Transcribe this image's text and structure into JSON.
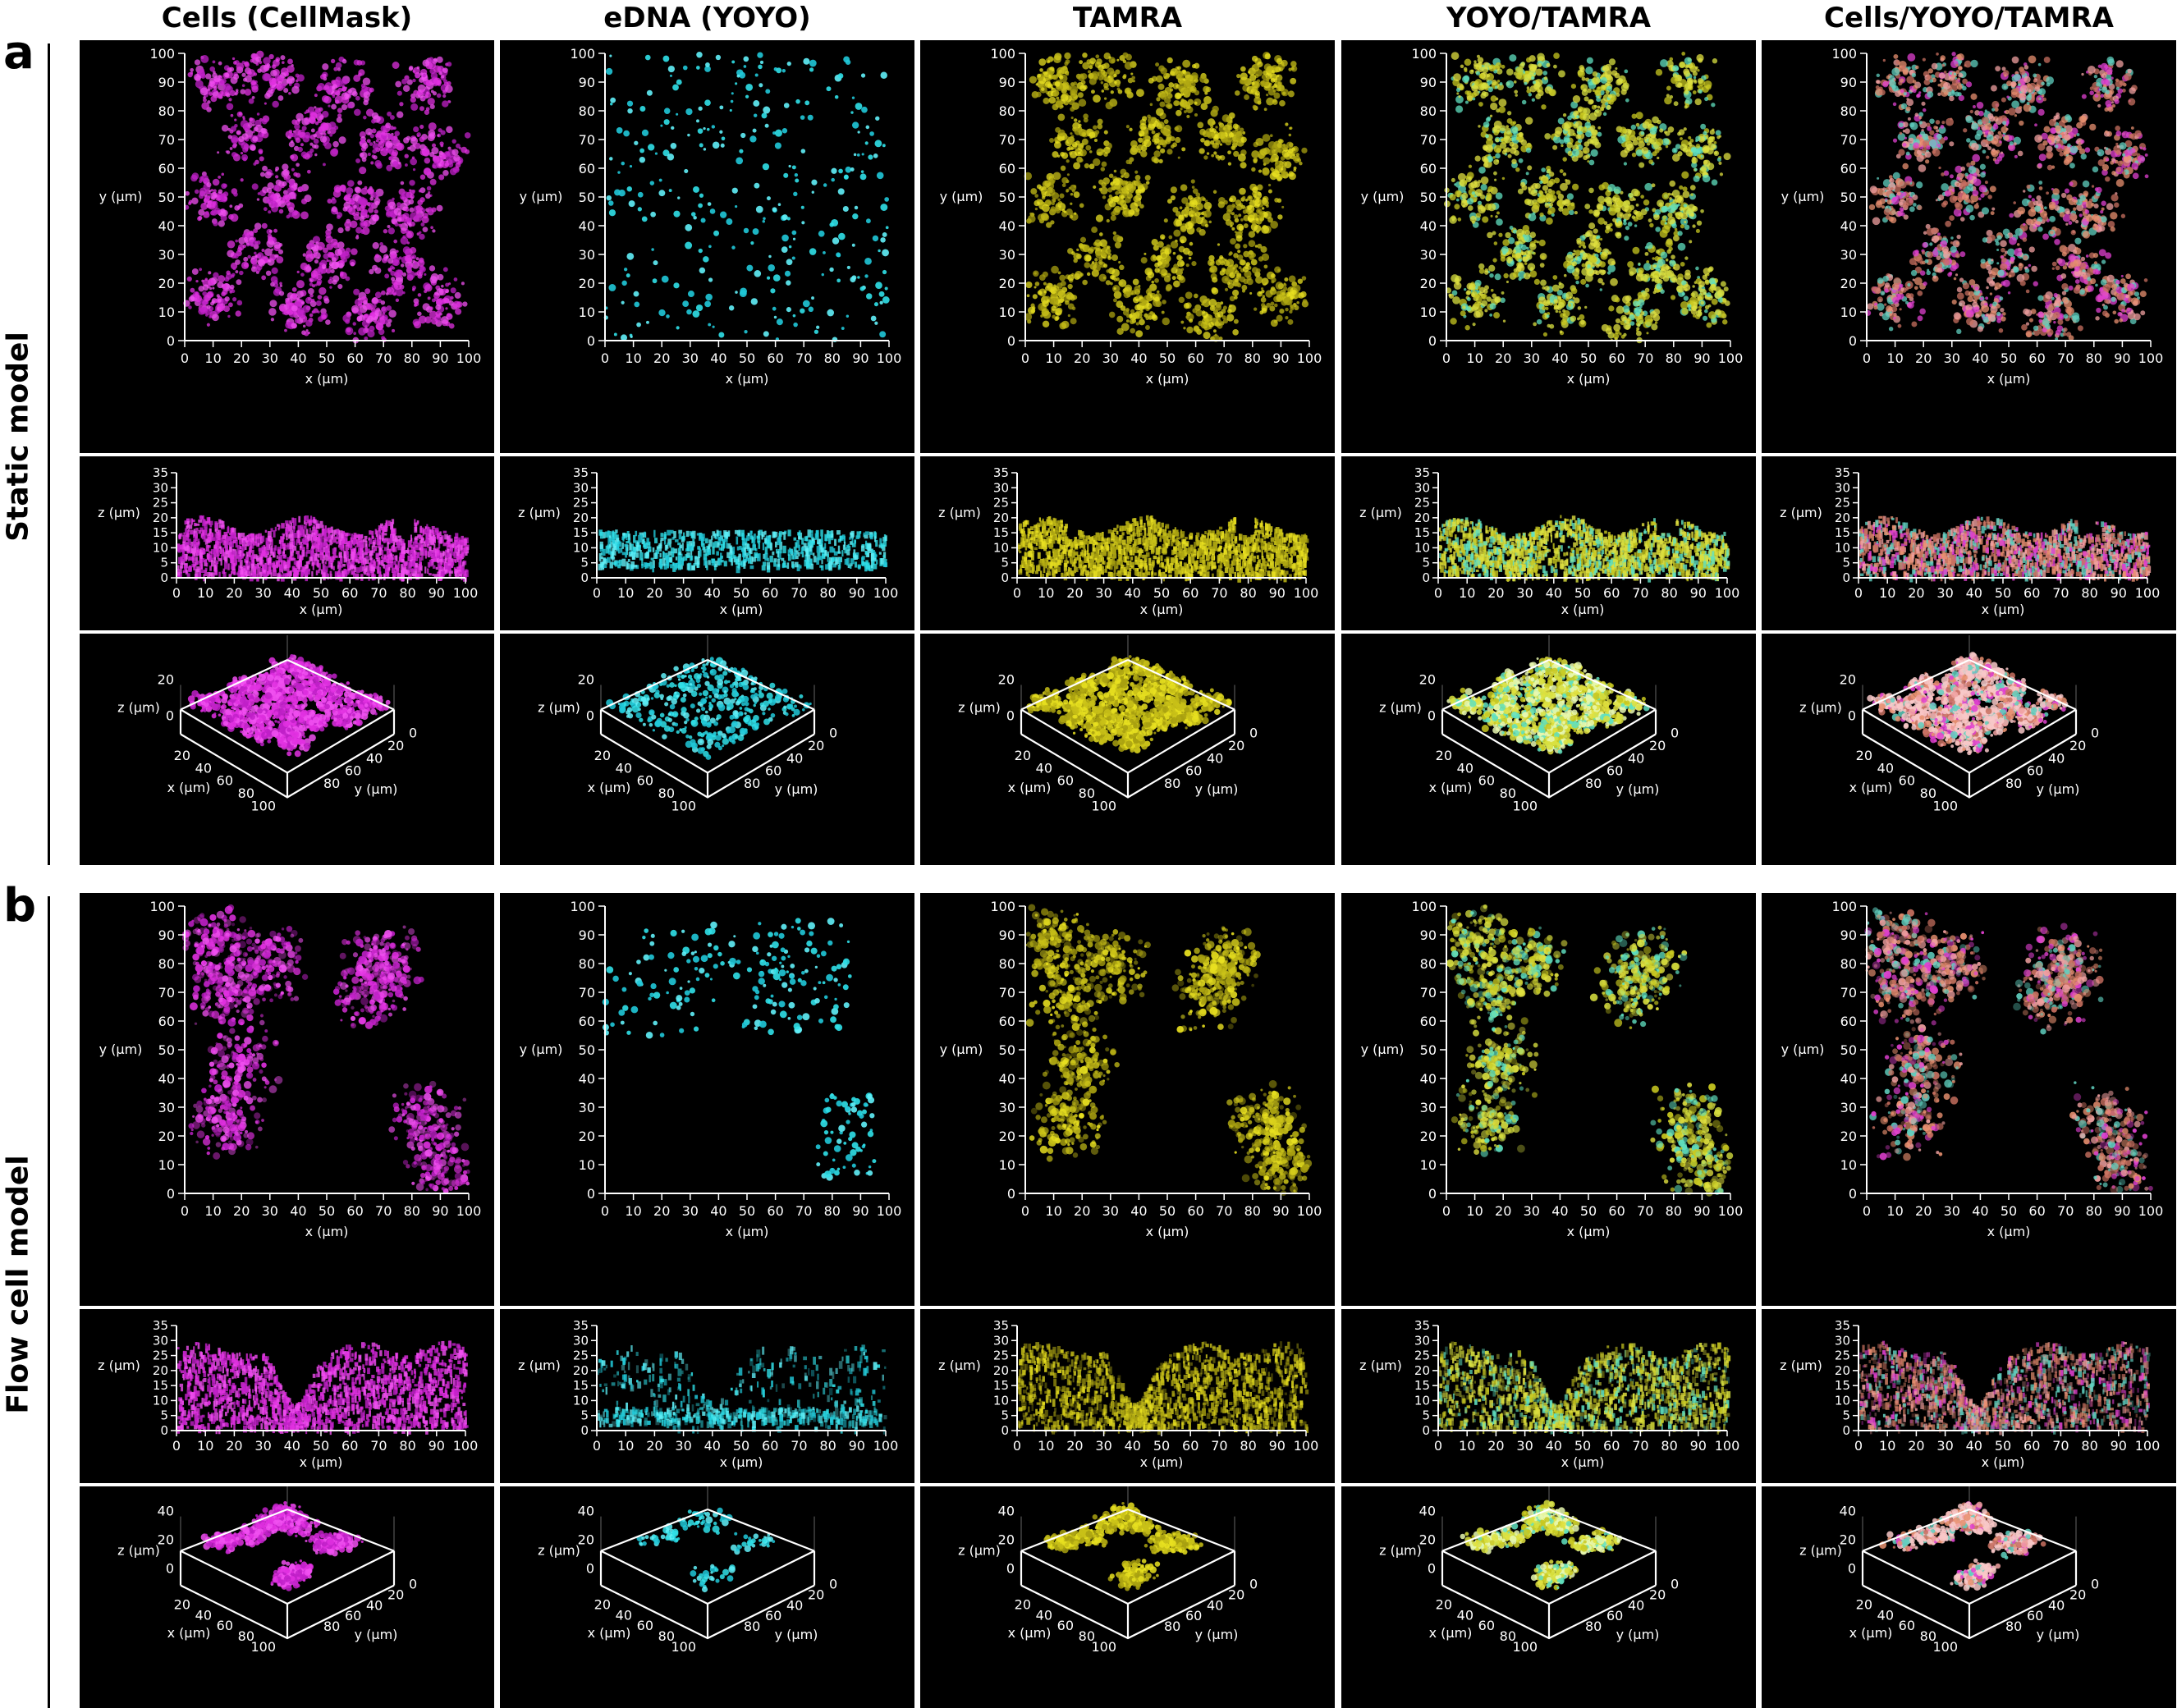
{
  "columns": [
    {
      "title": "Cells (CellMask)",
      "channel": "cells"
    },
    {
      "title": "eDNA (YOYO)",
      "channel": "edna"
    },
    {
      "title": "TAMRA",
      "channel": "tamra"
    },
    {
      "title": "YOYO/TAMRA",
      "channel": "yoyo_tamra"
    },
    {
      "title": "Cells/YOYO/TAMRA",
      "channel": "merge"
    }
  ],
  "sections": [
    {
      "letter": "a",
      "label": "Static model",
      "kind": "static"
    },
    {
      "letter": "b",
      "label": "Flow cell model",
      "kind": "flow"
    }
  ],
  "axes": {
    "x_label": "x (µm)",
    "y_label": "y (µm)",
    "z_label": "z (µm)",
    "xy_ticks": [
      "0",
      "10",
      "20",
      "30",
      "40",
      "50",
      "60",
      "70",
      "80",
      "90",
      "100"
    ],
    "z_ticks": [
      "0",
      "5",
      "10",
      "15",
      "20",
      "25",
      "30",
      "35"
    ],
    "iso_static_z": [
      "0",
      "20"
    ],
    "iso_flow_z": [
      "0",
      "20",
      "40"
    ],
    "iso_x_ticks": [
      "20",
      "40",
      "60",
      "80",
      "100"
    ],
    "iso_y_ticks": [
      "0",
      "20",
      "40",
      "60",
      "80"
    ]
  },
  "colors": {
    "cells": "#e030e0",
    "edna": "#30e0e8",
    "tamra": "#e8e020",
    "yoyo_tamra": "#d8e040",
    "merge": "#e89070",
    "axis": "#ffffff",
    "panel_bg": "#000000"
  }
}
